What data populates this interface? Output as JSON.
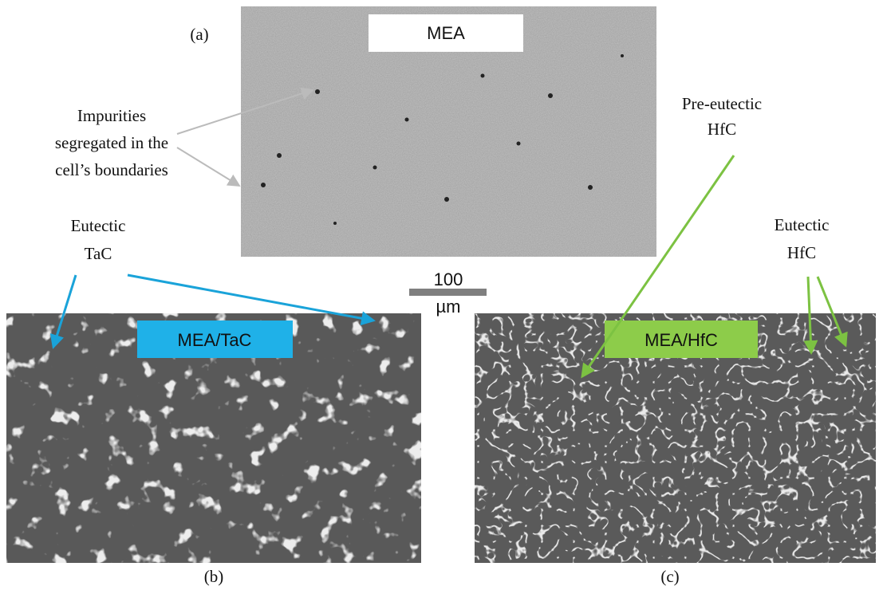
{
  "panel_a": {
    "letter": "(a)",
    "label": "MEA",
    "annotation": [
      "Impurities",
      "segregated in the",
      "cell’s boundaries"
    ]
  },
  "scale_bar": {
    "value": "100",
    "unit": "µm"
  },
  "panel_b": {
    "letter": "(b)",
    "label": "MEA/TaC",
    "annotation": [
      "Eutectic",
      "TaC"
    ]
  },
  "panel_c": {
    "letter": "(c)",
    "label": "MEA/HfC",
    "annotations": [
      [
        "Pre-eutectic",
        "HfC"
      ],
      [
        "Eutectic",
        "HfC"
      ]
    ]
  }
}
